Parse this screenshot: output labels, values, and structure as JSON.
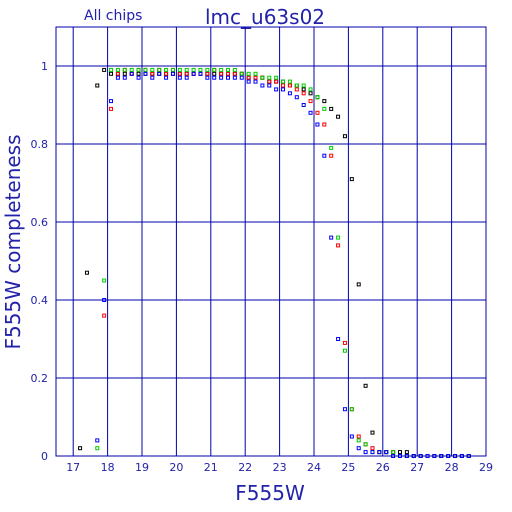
{
  "header": {
    "left_label": "All chips",
    "title": "lmc_u63s02"
  },
  "colors": {
    "axis": "#0000aa",
    "text": "#2222aa",
    "series": [
      "#000000",
      "#ff0000",
      "#00cc00",
      "#0000ff"
    ]
  },
  "chart_data": {
    "type": "scatter",
    "title": "lmc_u63s02",
    "xlabel": "F555W",
    "ylabel": "F555W completeness",
    "xlim": [
      16.5,
      29
    ],
    "ylim": [
      0,
      1.1
    ],
    "grid": true,
    "x_ticks": [
      "17",
      "18",
      "19",
      "20",
      "21",
      "22",
      "23",
      "24",
      "25",
      "26",
      "27",
      "28",
      "29"
    ],
    "y_ticks": [
      "0",
      "0.2",
      "0.4",
      "0.6",
      "0.8",
      "1"
    ],
    "series": [
      {
        "color": "#000000",
        "points": [
          [
            17.2,
            0.02
          ],
          [
            17.4,
            0.47
          ],
          [
            17.7,
            0.95
          ],
          [
            17.9,
            0.99
          ],
          [
            18.1,
            0.98
          ],
          [
            18.3,
            0.98
          ],
          [
            18.5,
            0.98
          ],
          [
            18.7,
            0.98
          ],
          [
            18.9,
            0.98
          ],
          [
            19.1,
            0.98
          ],
          [
            19.3,
            0.98
          ],
          [
            19.5,
            0.98
          ],
          [
            19.7,
            0.98
          ],
          [
            19.9,
            0.98
          ],
          [
            20.1,
            0.98
          ],
          [
            20.3,
            0.98
          ],
          [
            20.5,
            0.98
          ],
          [
            20.7,
            0.98
          ],
          [
            20.9,
            0.98
          ],
          [
            21.1,
            0.98
          ],
          [
            21.3,
            0.98
          ],
          [
            21.5,
            0.98
          ],
          [
            21.7,
            0.98
          ],
          [
            21.9,
            0.98
          ],
          [
            22.1,
            0.97
          ],
          [
            22.3,
            0.97
          ],
          [
            22.5,
            0.97
          ],
          [
            22.7,
            0.96
          ],
          [
            22.9,
            0.96
          ],
          [
            23.1,
            0.96
          ],
          [
            23.3,
            0.95
          ],
          [
            23.5,
            0.95
          ],
          [
            23.7,
            0.94
          ],
          [
            23.9,
            0.93
          ],
          [
            24.1,
            0.92
          ],
          [
            24.3,
            0.91
          ],
          [
            24.5,
            0.89
          ],
          [
            24.7,
            0.87
          ],
          [
            24.9,
            0.82
          ],
          [
            25.1,
            0.71
          ],
          [
            25.3,
            0.44
          ],
          [
            25.5,
            0.18
          ],
          [
            25.7,
            0.06
          ],
          [
            25.9,
            0.01
          ],
          [
            26.1,
            0.01
          ],
          [
            26.3,
            0.01
          ],
          [
            26.5,
            0.01
          ],
          [
            26.7,
            0.01
          ],
          [
            26.9,
            0.0
          ],
          [
            27.1,
            0.0
          ],
          [
            27.3,
            0.0
          ],
          [
            27.5,
            0.0
          ],
          [
            27.7,
            0.0
          ],
          [
            27.9,
            0.0
          ],
          [
            28.1,
            0.0
          ],
          [
            28.3,
            0.0
          ],
          [
            28.5,
            0.0
          ]
        ]
      },
      {
        "color": "#ff0000",
        "points": [
          [
            17.9,
            0.36
          ],
          [
            18.1,
            0.89
          ],
          [
            18.3,
            0.98
          ],
          [
            18.5,
            0.99
          ],
          [
            18.7,
            0.98
          ],
          [
            18.9,
            0.99
          ],
          [
            19.1,
            0.99
          ],
          [
            19.3,
            0.98
          ],
          [
            19.5,
            0.99
          ],
          [
            19.7,
            0.98
          ],
          [
            19.9,
            0.99
          ],
          [
            20.1,
            0.98
          ],
          [
            20.3,
            0.98
          ],
          [
            20.5,
            0.98
          ],
          [
            20.7,
            0.98
          ],
          [
            20.9,
            0.98
          ],
          [
            21.1,
            0.99
          ],
          [
            21.3,
            0.98
          ],
          [
            21.5,
            0.98
          ],
          [
            21.7,
            0.98
          ],
          [
            21.9,
            0.98
          ],
          [
            22.1,
            0.97
          ],
          [
            22.3,
            0.97
          ],
          [
            22.5,
            0.97
          ],
          [
            22.7,
            0.96
          ],
          [
            22.9,
            0.96
          ],
          [
            23.1,
            0.95
          ],
          [
            23.3,
            0.95
          ],
          [
            23.5,
            0.94
          ],
          [
            23.7,
            0.93
          ],
          [
            23.9,
            0.91
          ],
          [
            24.1,
            0.88
          ],
          [
            24.3,
            0.85
          ],
          [
            24.5,
            0.77
          ],
          [
            24.7,
            0.54
          ],
          [
            24.9,
            0.29
          ],
          [
            25.1,
            0.12
          ],
          [
            25.3,
            0.05
          ],
          [
            25.5,
            0.03
          ],
          [
            25.7,
            0.02
          ],
          [
            25.9,
            0.01
          ],
          [
            26.1,
            0.01
          ],
          [
            26.3,
            0.01
          ],
          [
            26.5,
            0.0
          ],
          [
            26.7,
            0.0
          ],
          [
            26.9,
            0.0
          ],
          [
            27.1,
            0.0
          ],
          [
            27.3,
            0.0
          ],
          [
            27.5,
            0.0
          ],
          [
            27.7,
            0.0
          ],
          [
            27.9,
            0.0
          ],
          [
            28.1,
            0.0
          ],
          [
            28.3,
            0.0
          ],
          [
            28.5,
            0.0
          ]
        ]
      },
      {
        "color": "#00cc00",
        "points": [
          [
            17.7,
            0.02
          ],
          [
            17.9,
            0.45
          ],
          [
            18.1,
            0.99
          ],
          [
            18.3,
            0.99
          ],
          [
            18.5,
            0.99
          ],
          [
            18.7,
            0.99
          ],
          [
            18.9,
            0.99
          ],
          [
            19.1,
            0.99
          ],
          [
            19.3,
            0.99
          ],
          [
            19.5,
            0.99
          ],
          [
            19.7,
            0.99
          ],
          [
            19.9,
            0.99
          ],
          [
            20.1,
            0.99
          ],
          [
            20.3,
            0.99
          ],
          [
            20.5,
            0.99
          ],
          [
            20.7,
            0.99
          ],
          [
            20.9,
            0.99
          ],
          [
            21.1,
            0.99
          ],
          [
            21.3,
            0.99
          ],
          [
            21.5,
            0.99
          ],
          [
            21.7,
            0.99
          ],
          [
            21.9,
            0.98
          ],
          [
            22.1,
            0.98
          ],
          [
            22.3,
            0.98
          ],
          [
            22.5,
            0.97
          ],
          [
            22.7,
            0.97
          ],
          [
            22.9,
            0.97
          ],
          [
            23.1,
            0.96
          ],
          [
            23.3,
            0.96
          ],
          [
            23.5,
            0.95
          ],
          [
            23.7,
            0.95
          ],
          [
            23.9,
            0.94
          ],
          [
            24.1,
            0.92
          ],
          [
            24.3,
            0.89
          ],
          [
            24.5,
            0.79
          ],
          [
            24.7,
            0.56
          ],
          [
            24.9,
            0.27
          ],
          [
            25.1,
            0.12
          ],
          [
            25.3,
            0.04
          ],
          [
            25.5,
            0.03
          ],
          [
            25.7,
            0.01
          ],
          [
            25.9,
            0.01
          ],
          [
            26.1,
            0.01
          ],
          [
            26.3,
            0.01
          ],
          [
            26.5,
            0.0
          ],
          [
            26.7,
            0.0
          ],
          [
            26.9,
            0.0
          ],
          [
            27.1,
            0.0
          ],
          [
            27.3,
            0.0
          ],
          [
            27.5,
            0.0
          ],
          [
            27.7,
            0.0
          ],
          [
            27.9,
            0.0
          ],
          [
            28.1,
            0.0
          ],
          [
            28.3,
            0.0
          ],
          [
            28.5,
            0.0
          ]
        ]
      },
      {
        "color": "#0000ff",
        "points": [
          [
            17.7,
            0.04
          ],
          [
            17.9,
            0.4
          ],
          [
            18.1,
            0.91
          ],
          [
            18.3,
            0.97
          ],
          [
            18.5,
            0.97
          ],
          [
            18.7,
            0.98
          ],
          [
            18.9,
            0.97
          ],
          [
            19.1,
            0.98
          ],
          [
            19.3,
            0.97
          ],
          [
            19.5,
            0.98
          ],
          [
            19.7,
            0.97
          ],
          [
            19.9,
            0.98
          ],
          [
            20.1,
            0.97
          ],
          [
            20.3,
            0.97
          ],
          [
            20.5,
            0.98
          ],
          [
            20.7,
            0.98
          ],
          [
            20.9,
            0.97
          ],
          [
            21.1,
            0.97
          ],
          [
            21.3,
            0.97
          ],
          [
            21.5,
            0.97
          ],
          [
            21.7,
            0.97
          ],
          [
            21.9,
            0.97
          ],
          [
            22.1,
            0.96
          ],
          [
            22.3,
            0.96
          ],
          [
            22.5,
            0.95
          ],
          [
            22.7,
            0.95
          ],
          [
            22.9,
            0.94
          ],
          [
            23.1,
            0.94
          ],
          [
            23.3,
            0.93
          ],
          [
            23.5,
            0.92
          ],
          [
            23.7,
            0.9
          ],
          [
            23.9,
            0.88
          ],
          [
            24.1,
            0.85
          ],
          [
            24.3,
            0.77
          ],
          [
            24.5,
            0.56
          ],
          [
            24.7,
            0.3
          ],
          [
            24.9,
            0.12
          ],
          [
            25.1,
            0.05
          ],
          [
            25.3,
            0.02
          ],
          [
            25.5,
            0.01
          ],
          [
            25.7,
            0.01
          ],
          [
            25.9,
            0.01
          ],
          [
            26.1,
            0.01
          ],
          [
            26.3,
            0.0
          ],
          [
            26.5,
            0.0
          ],
          [
            26.7,
            0.0
          ],
          [
            26.9,
            0.0
          ],
          [
            27.1,
            0.0
          ],
          [
            27.3,
            0.0
          ],
          [
            27.5,
            0.0
          ],
          [
            27.7,
            0.0
          ],
          [
            27.9,
            0.0
          ],
          [
            28.1,
            0.0
          ],
          [
            28.3,
            0.0
          ],
          [
            28.5,
            0.0
          ]
        ]
      }
    ]
  }
}
